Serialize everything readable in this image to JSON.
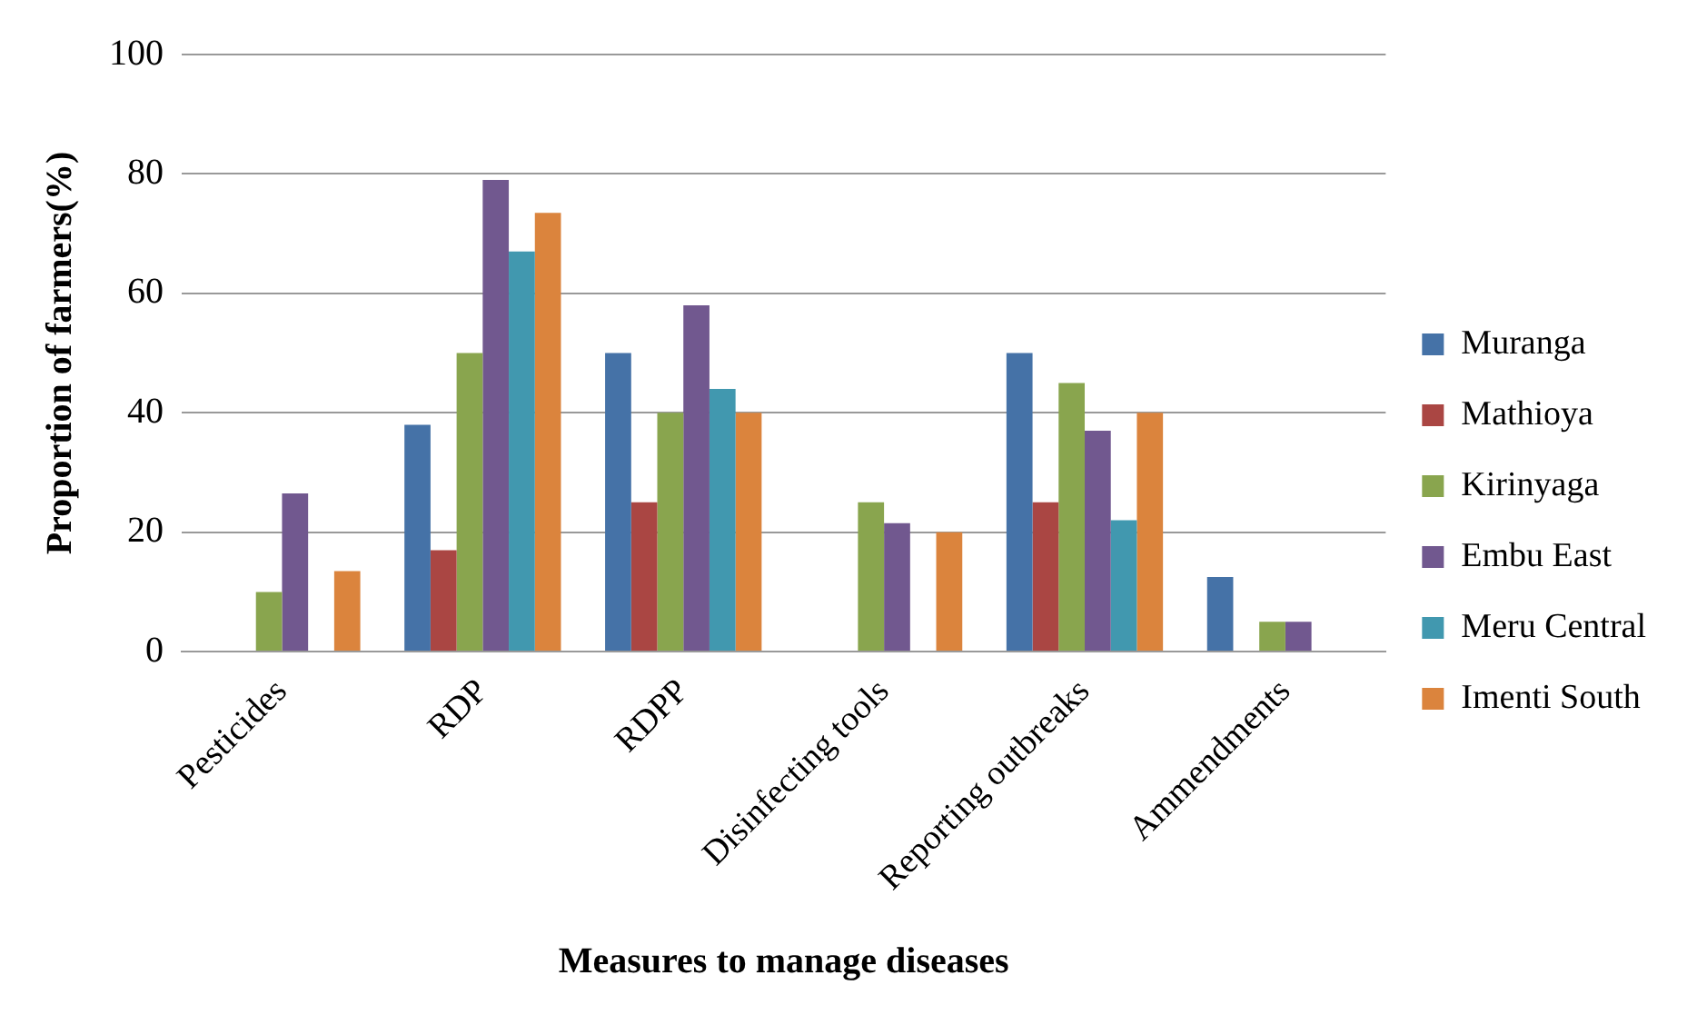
{
  "chart_data": {
    "type": "bar",
    "xlabel": "Measures to manage diseases",
    "ylabel": "Proportion of farmers(%)",
    "categories": [
      "Pesticides",
      "RDP",
      "RDPP",
      "Disinfecting tools",
      "Reporting outbreaks",
      "Ammendments"
    ],
    "series": [
      {
        "name": "Muranga",
        "color": "#4572a7",
        "values": [
          0,
          38,
          50,
          0,
          50,
          12.5
        ]
      },
      {
        "name": "Mathioya",
        "color": "#aa4643",
        "values": [
          0,
          17,
          25,
          0,
          25,
          0
        ]
      },
      {
        "name": "Kirinyaga",
        "color": "#89a54e",
        "values": [
          10,
          50,
          40,
          25,
          45,
          5
        ]
      },
      {
        "name": "Embu East",
        "color": "#71588f",
        "values": [
          26.5,
          79,
          58,
          21.5,
          37,
          5
        ]
      },
      {
        "name": "Meru Central",
        "color": "#4198af",
        "values": [
          0,
          67,
          44,
          0,
          22,
          0
        ]
      },
      {
        "name": "Imenti South",
        "color": "#db843d",
        "values": [
          13.5,
          73.5,
          40,
          20,
          40,
          0
        ]
      }
    ],
    "ylim": [
      0,
      100
    ],
    "yticks": [
      0,
      20,
      40,
      60,
      80,
      100
    ],
    "grid": "y",
    "legend": "right"
  }
}
